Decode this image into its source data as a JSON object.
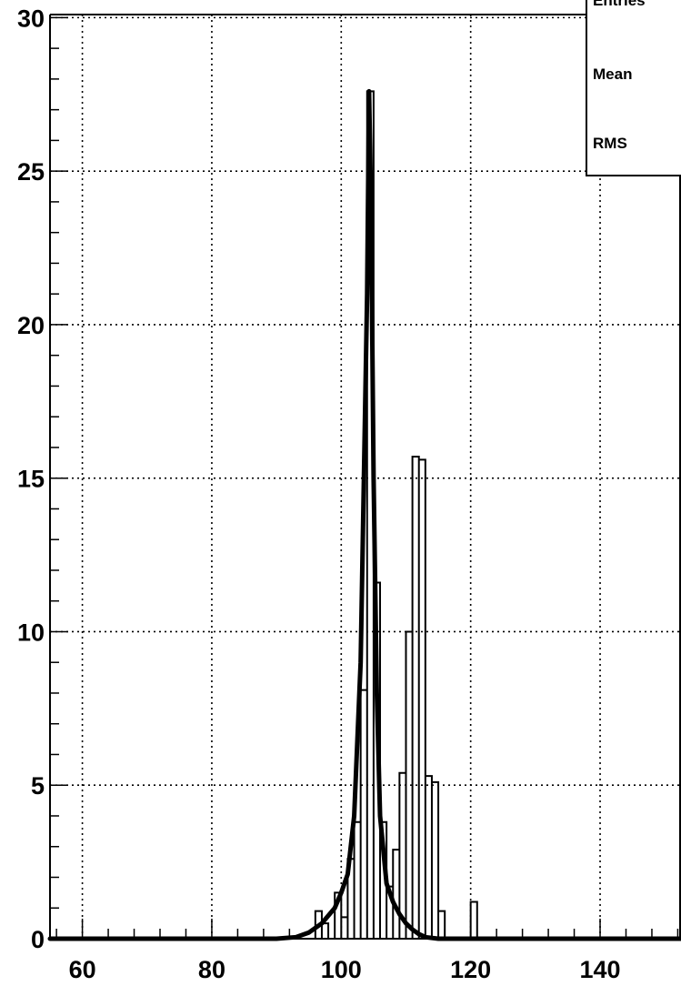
{
  "chart_data": {
    "type": "histogram",
    "title": "",
    "xlabel": "",
    "ylabel": "",
    "xlim": [
      55,
      152.5
    ],
    "ylim": [
      0,
      30.1
    ],
    "grid": true,
    "x_ticks": [
      60,
      80,
      100,
      120,
      140
    ],
    "y_ticks": [
      0,
      5,
      10,
      15,
      20,
      25,
      30
    ],
    "histogram": {
      "bin_width": 1,
      "bins": [
        {
          "x0": 96,
          "x1": 97,
          "y": 0.9
        },
        {
          "x0": 97,
          "x1": 98,
          "y": 0.5
        },
        {
          "x0": 98,
          "x1": 99,
          "y": 0.0
        },
        {
          "x0": 99,
          "x1": 100,
          "y": 1.5
        },
        {
          "x0": 100,
          "x1": 101,
          "y": 0.7
        },
        {
          "x0": 101,
          "x1": 102,
          "y": 2.6
        },
        {
          "x0": 102,
          "x1": 103,
          "y": 3.8
        },
        {
          "x0": 103,
          "x1": 104,
          "y": 8.1
        },
        {
          "x0": 104,
          "x1": 105,
          "y": 27.6
        },
        {
          "x0": 105,
          "x1": 106,
          "y": 11.6
        },
        {
          "x0": 106,
          "x1": 107,
          "y": 3.8
        },
        {
          "x0": 107,
          "x1": 108,
          "y": 1.7
        },
        {
          "x0": 108,
          "x1": 109,
          "y": 2.9
        },
        {
          "x0": 109,
          "x1": 110,
          "y": 5.4
        },
        {
          "x0": 110,
          "x1": 111,
          "y": 10.0
        },
        {
          "x0": 111,
          "x1": 112,
          "y": 15.7
        },
        {
          "x0": 112,
          "x1": 113,
          "y": 15.6
        },
        {
          "x0": 113,
          "x1": 114,
          "y": 5.3
        },
        {
          "x0": 114,
          "x1": 115,
          "y": 5.1
        },
        {
          "x0": 115,
          "x1": 116,
          "y": 0.9
        },
        {
          "x0": 116,
          "x1": 117,
          "y": 0.0
        },
        {
          "x0": 120,
          "x1": 121,
          "y": 1.2
        }
      ]
    },
    "fit_curve": {
      "x": [
        55,
        90,
        93,
        95,
        97,
        99,
        100,
        101,
        102,
        103,
        103.5,
        104,
        104.3,
        104.6,
        105,
        105.5,
        106,
        107,
        108,
        109,
        110,
        111,
        112,
        113,
        115,
        118,
        152.5
      ],
      "y": [
        0.0,
        0.0,
        0.05,
        0.2,
        0.5,
        1.0,
        1.5,
        2.1,
        4.0,
        9.0,
        15.0,
        21.0,
        27.6,
        24.0,
        15.0,
        8.0,
        4.0,
        1.8,
        1.2,
        0.8,
        0.5,
        0.3,
        0.15,
        0.05,
        0.0,
        0.0,
        0.0
      ]
    },
    "stats_box": {
      "labels": [
        "Entries",
        "Mean",
        "RMS"
      ]
    },
    "colors": {
      "axis": "#000000",
      "grid": "#000000",
      "histogram": "#000000",
      "fit": "#000000"
    }
  }
}
